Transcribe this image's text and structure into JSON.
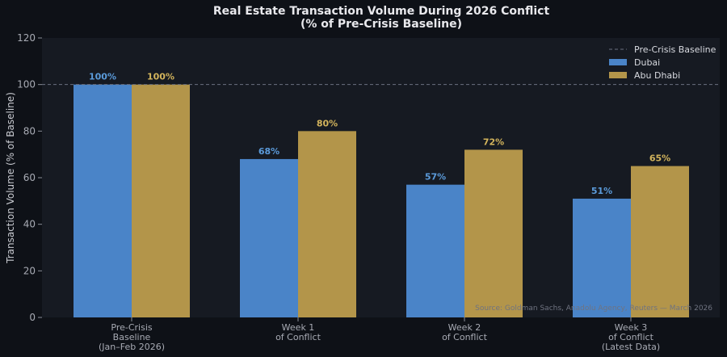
{
  "chart_data": {
    "type": "bar",
    "title": "Real Estate Transaction Volume During 2026 Conflict",
    "subtitle": "(% of Pre-Crisis Baseline)",
    "ylabel": "Transaction Volume (% of Baseline)",
    "xlabel": "",
    "ylim": [
      0,
      120
    ],
    "yticks": [
      0,
      20,
      40,
      60,
      80,
      100,
      120
    ],
    "categories": [
      [
        "Pre-Crisis",
        "Baseline",
        "(Jan–Feb 2026)"
      ],
      [
        "Week 1",
        "of Conflict"
      ],
      [
        "Week 2",
        "of Conflict"
      ],
      [
        "Week 3",
        "of Conflict",
        "(Latest Data)"
      ]
    ],
    "series": [
      {
        "name": "Dubai",
        "values": [
          100,
          68,
          57,
          51
        ],
        "labels": [
          "100%",
          "68%",
          "57%",
          "51%"
        ],
        "color": "#4a84c8",
        "label_color": "#5b9bdb"
      },
      {
        "name": "Abu Dhabi",
        "values": [
          100,
          80,
          72,
          65
        ],
        "labels": [
          "100%",
          "80%",
          "72%",
          "65%"
        ],
        "color": "#b3954a",
        "label_color": "#d3b45c"
      }
    ],
    "baseline": {
      "value": 100,
      "name": "Pre-Crisis Baseline"
    },
    "legend_position": "top-right",
    "grid": false,
    "source": "Source: Goldman Sachs, Anadolu Agency, Reuters — March 2026",
    "colors": {
      "background": "#0e1117",
      "plot": "#161a22",
      "baseline": "#6b7080"
    }
  }
}
